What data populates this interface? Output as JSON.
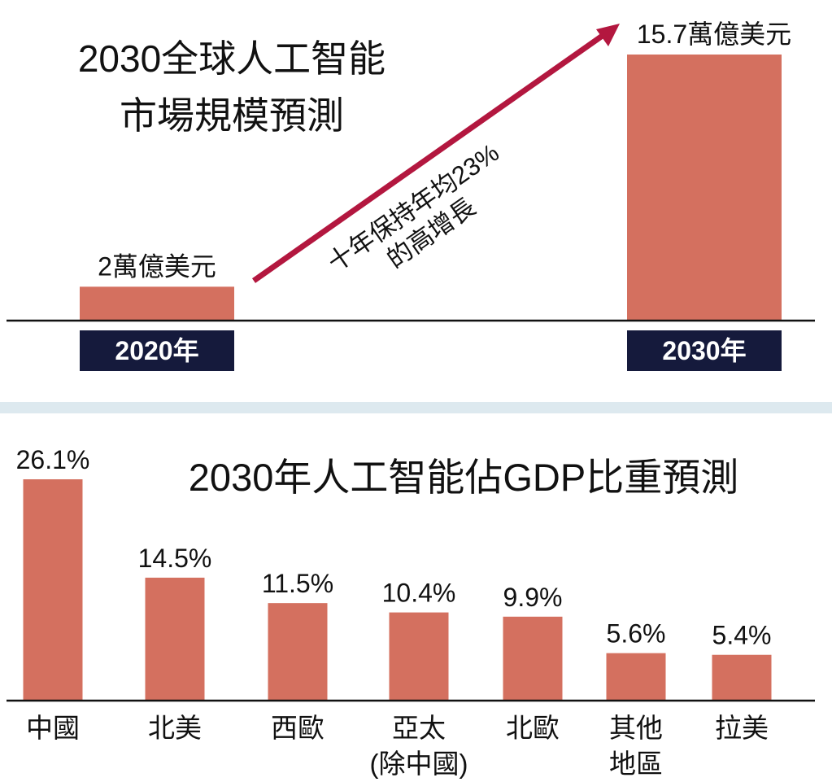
{
  "colors": {
    "bar": "#d4705f",
    "arrow": "#b3173f",
    "year_box": "#151a3c",
    "divider": "#dde9ef",
    "text": "#111111"
  },
  "chart_data": [
    {
      "type": "bar",
      "title": [
        "2030全球人工智能",
        "市場規模預測"
      ],
      "categories": [
        "2020年",
        "2030年"
      ],
      "values": [
        2,
        15.7
      ],
      "data_labels": [
        "2萬億美元",
        "15.7萬億美元"
      ],
      "annotation": [
        "十年保持年均23%",
        "的高增長"
      ]
    },
    {
      "type": "bar",
      "title": "2030年人工智能佔GDP比重預測",
      "categories": [
        [
          "中國"
        ],
        [
          "北美"
        ],
        [
          "西歐"
        ],
        [
          "亞太",
          "(除中國)"
        ],
        [
          "北歐"
        ],
        [
          "其他",
          "地區"
        ],
        [
          "拉美"
        ]
      ],
      "values": [
        26.1,
        14.5,
        11.5,
        10.4,
        9.9,
        5.6,
        5.4
      ],
      "data_labels": [
        "26.1%",
        "14.5%",
        "11.5%",
        "10.4%",
        "9.9%",
        "5.6%",
        "5.4%"
      ]
    }
  ]
}
